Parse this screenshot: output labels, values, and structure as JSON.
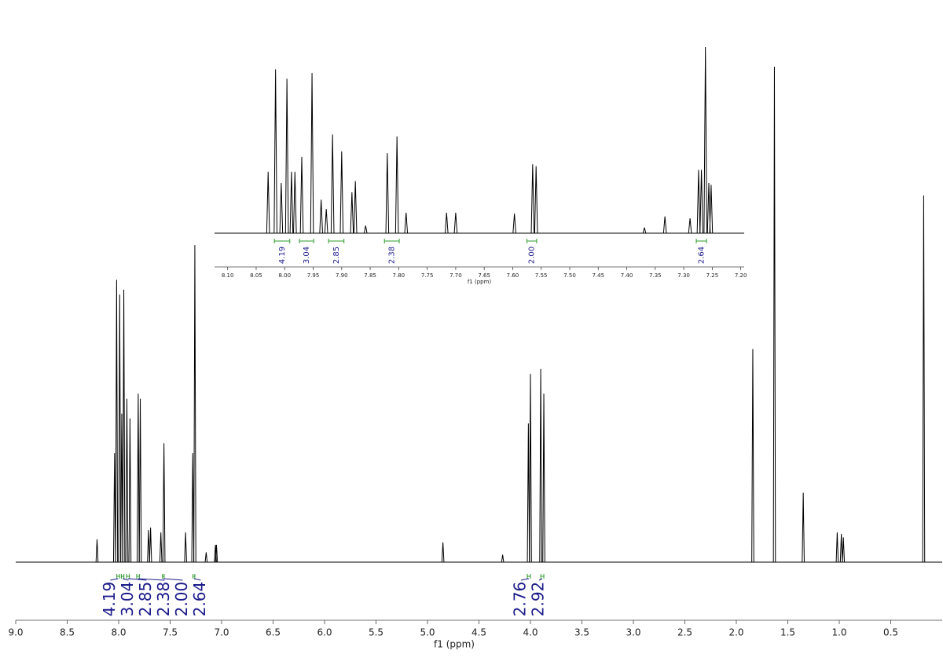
{
  "chart_data": [
    {
      "type": "spectrum",
      "x_label": "f1 (ppm)",
      "xlim": [
        9,
        0
      ],
      "ylim": [
        0,
        100
      ],
      "color": "#000000",
      "xticks": [
        {
          "value": 9,
          "label": "9.0"
        },
        8.5,
        {
          "value": 8,
          "label": "8.0"
        },
        7.5,
        {
          "value": 7,
          "label": "7.0"
        },
        6.5,
        {
          "value": 6,
          "label": "6.0"
        },
        5.5,
        {
          "value": 5,
          "label": "5.0"
        },
        4.5,
        {
          "value": 4,
          "label": "4.0"
        },
        3.5,
        {
          "value": 3,
          "label": "3.0"
        },
        2.5,
        {
          "value": 2,
          "label": "2.0"
        },
        1.5,
        {
          "value": 1,
          "label": "1.0"
        },
        0.5
      ],
      "x": [
        8.21,
        8.04,
        8.02,
        7.99,
        7.97,
        7.95,
        7.92,
        7.89,
        7.81,
        7.79,
        7.71,
        7.69,
        7.59,
        7.56,
        7.35,
        7.28,
        7.26,
        7.15,
        7.06,
        7.05,
        4.85,
        4.27,
        4.02,
        4.0,
        3.9,
        3.87,
        1.84,
        1.63,
        1.35,
        1.02,
        0.98,
        0.96,
        0.18
      ],
      "values": [
        4.6,
        22,
        57,
        54,
        30,
        55,
        33,
        29,
        34,
        33,
        6.5,
        7,
        6,
        24,
        6,
        22,
        64,
        2,
        3.5,
        3.5,
        4,
        1.5,
        28,
        38,
        39,
        34,
        43,
        100,
        14,
        6,
        5.7,
        5,
        74
      ],
      "integrals": {
        "color": "#2e9b2e",
        "label_color": "#1c1c8c",
        "ranges": [
          [
            8.018,
            7.991
          ],
          [
            7.974,
            7.949
          ],
          [
            7.923,
            7.896
          ],
          [
            7.825,
            7.799
          ],
          [
            7.575,
            7.558
          ],
          [
            7.278,
            7.26
          ],
          [
            4.03,
            4.0
          ],
          [
            3.9,
            3.87
          ]
        ],
        "values": [
          4.19,
          3.04,
          2.85,
          2.38,
          2,
          2.64,
          2.76,
          2.92
        ],
        "value_labels": [
          "4.19",
          "3.04",
          "2.85",
          "2.38",
          "2.00",
          "2.64",
          "2.76",
          "2.92"
        ]
      }
    },
    {
      "type": "spectrum",
      "x_label": "f1 (ppm)",
      "xlim": [
        8.123,
        7.194
      ],
      "ylim": [
        0,
        100
      ],
      "color": "#000000",
      "xticks": [
        {
          "value": 8.1,
          "label": "8.10"
        },
        8.05,
        {
          "value": 8,
          "label": "8.00"
        },
        7.95,
        {
          "value": 7.9,
          "label": "7.90"
        },
        7.85,
        {
          "value": 7.8,
          "label": "7.80"
        },
        7.75,
        {
          "value": 7.7,
          "label": "7.70"
        },
        7.65,
        {
          "value": 7.6,
          "label": "7.60"
        },
        7.55,
        {
          "value": 7.5,
          "label": "7.50"
        },
        7.45,
        {
          "value": 7.4,
          "label": "7.40"
        },
        7.35,
        {
          "value": 7.3,
          "label": "7.30"
        },
        7.25,
        {
          "value": 7.2,
          "label": "7.20"
        }
      ],
      "x": [
        8.029,
        8.016,
        8.006,
        7.996,
        7.988,
        7.982,
        7.97,
        7.952,
        7.936,
        7.927,
        7.916,
        7.9,
        7.882,
        7.876,
        7.858,
        7.82,
        7.803,
        7.787,
        7.716,
        7.7,
        7.597,
        7.565,
        7.559,
        7.369,
        7.333,
        7.289,
        7.274,
        7.269,
        7.262,
        7.256,
        7.252
      ],
      "values": [
        33,
        88,
        27,
        83,
        33,
        33,
        41,
        86,
        18,
        13,
        53,
        44,
        22,
        28,
        4,
        43,
        52,
        11,
        11,
        11,
        10.5,
        37,
        36,
        3,
        9,
        8,
        34,
        34,
        100,
        27,
        26
      ],
      "integrals": {
        "color": "#2e9b2e",
        "label_color": "#1c1c8c",
        "ranges": [
          [
            8.018,
            7.991
          ],
          [
            7.974,
            7.949
          ],
          [
            7.923,
            7.896
          ],
          [
            7.825,
            7.799
          ],
          [
            7.575,
            7.558
          ],
          [
            7.278,
            7.26
          ]
        ],
        "values": [
          4.19,
          3.04,
          2.85,
          2.38,
          2,
          2.64
        ],
        "value_labels": [
          "4.19",
          "3.04",
          "2.85",
          "2.38",
          "2.00",
          "2.64"
        ]
      }
    }
  ]
}
